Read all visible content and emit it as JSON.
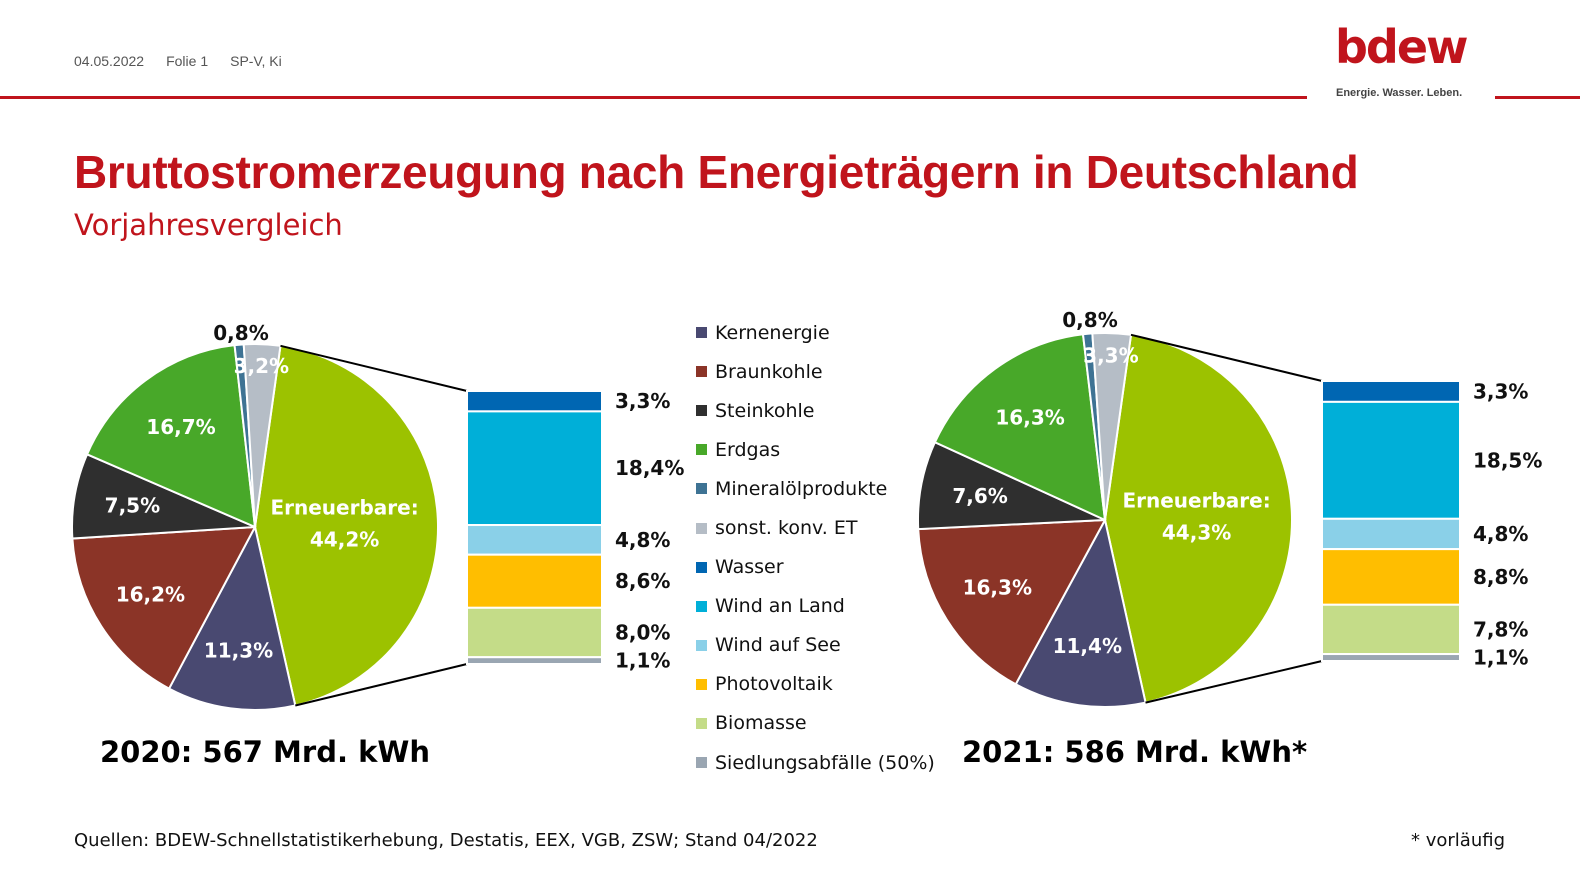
{
  "header": {
    "date": "04.05.2022",
    "slide": "Folie 1",
    "author": "SP-V, Ki",
    "logo_text": "bdew",
    "logo_tagline": "Energie. Wasser. Leben."
  },
  "title": "Bruttostromerzeugung nach Energieträgern in Deutschland",
  "subtitle": "Vorjahresvergleich",
  "colors": {
    "accent": "#c0141c",
    "Kernenergie": "#494971",
    "Braunkohle": "#8b3427",
    "Steinkohle": "#2f2f2f",
    "Erdgas": "#48a829",
    "Mineralölprodukte": "#3e7394",
    "sonst. konv. ET": "#b5bdc6",
    "Erneuerbare": "#9cc200",
    "Wasser": "#0066b2",
    "Wind an Land": "#00afd8",
    "Wind auf See": "#8ad0e8",
    "Photovoltaik": "#ffbe00",
    "Biomasse": "#c4dc88",
    "Siedlungsabfälle (50%)": "#9aa6b2"
  },
  "legend": [
    "Kernenergie",
    "Braunkohle",
    "Steinkohle",
    "Erdgas",
    "Mineralölprodukte",
    "sonst. konv. ET",
    "Wasser",
    "Wind an Land",
    "Wind auf See",
    "Photovoltaik",
    "Biomasse",
    "Siedlungsabfälle (50%)"
  ],
  "chart_data": [
    {
      "type": "pie",
      "year_label": "2020: 567 Mrd. kWh",
      "slices": [
        {
          "name": "Erneuerbare",
          "value": 44.2,
          "label": "Erneuerbare:\n44,2%"
        },
        {
          "name": "Kernenergie",
          "value": 11.3,
          "label": "11,3%"
        },
        {
          "name": "Braunkohle",
          "value": 16.2,
          "label": "16,2%"
        },
        {
          "name": "Steinkohle",
          "value": 7.5,
          "label": "7,5%"
        },
        {
          "name": "Erdgas",
          "value": 16.7,
          "label": "16,7%"
        },
        {
          "name": "Mineralölprodukte",
          "value": 0.8,
          "label": "0,8%"
        },
        {
          "name": "sonst. konv. ET",
          "value": 3.2,
          "label": "3,2%"
        }
      ],
      "renewables_breakdown": [
        {
          "name": "Wasser",
          "value": 3.3,
          "label": "3,3%"
        },
        {
          "name": "Wind an Land",
          "value": 18.4,
          "label": "18,4%"
        },
        {
          "name": "Wind auf See",
          "value": 4.8,
          "label": "4,8%"
        },
        {
          "name": "Photovoltaik",
          "value": 8.6,
          "label": "8,6%"
        },
        {
          "name": "Biomasse",
          "value": 8.0,
          "label": "8,0%"
        },
        {
          "name": "Siedlungsabfälle (50%)",
          "value": 1.1,
          "label": "1,1%"
        }
      ]
    },
    {
      "type": "pie",
      "year_label": "2021: 586 Mrd. kWh*",
      "slices": [
        {
          "name": "Erneuerbare",
          "value": 44.3,
          "label": "Erneuerbare:\n44,3%"
        },
        {
          "name": "Kernenergie",
          "value": 11.4,
          "label": "11,4%"
        },
        {
          "name": "Braunkohle",
          "value": 16.3,
          "label": "16,3%"
        },
        {
          "name": "Steinkohle",
          "value": 7.6,
          "label": "7,6%"
        },
        {
          "name": "Erdgas",
          "value": 16.3,
          "label": "16,3%"
        },
        {
          "name": "Mineralölprodukte",
          "value": 0.8,
          "label": "0,8%"
        },
        {
          "name": "sonst. konv. ET",
          "value": 3.3,
          "label": "3,3%"
        }
      ],
      "renewables_breakdown": [
        {
          "name": "Wasser",
          "value": 3.3,
          "label": "3,3%"
        },
        {
          "name": "Wind an Land",
          "value": 18.5,
          "label": "18,5%"
        },
        {
          "name": "Wind auf See",
          "value": 4.8,
          "label": "4,8%"
        },
        {
          "name": "Photovoltaik",
          "value": 8.8,
          "label": "8,8%"
        },
        {
          "name": "Biomasse",
          "value": 7.8,
          "label": "7,8%"
        },
        {
          "name": "Siedlungsabfälle (50%)",
          "value": 1.1,
          "label": "1,1%"
        }
      ]
    }
  ],
  "footer": {
    "sources": "Quellen: BDEW-Schnellstatistikerhebung, Destatis, EEX, VGB, ZSW; Stand 04/2022",
    "note": "* vorläufig"
  }
}
